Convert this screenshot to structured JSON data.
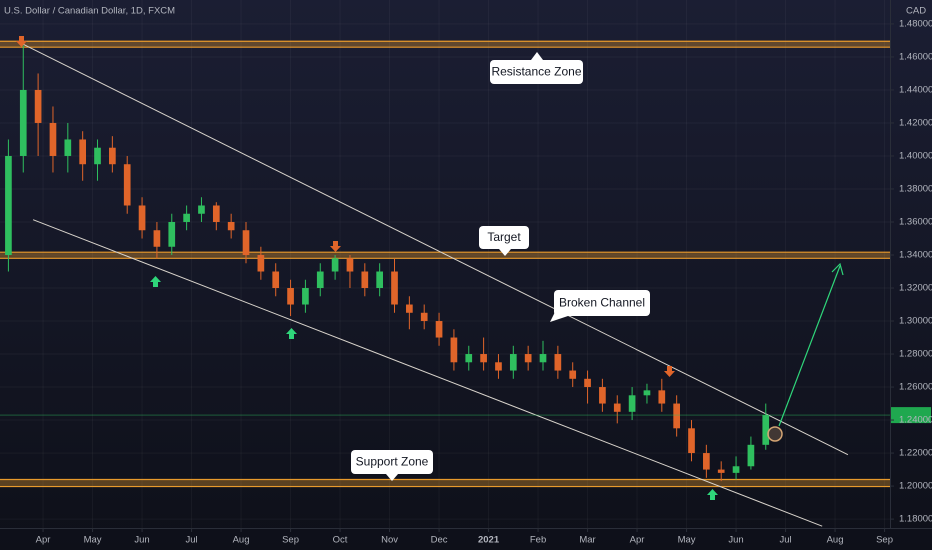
{
  "chart_data": {
    "type": "candlestick",
    "title": "U.S. Dollar / Canadian Dollar, 1D, FXCM",
    "y_axis_label": "CAD",
    "x": [
      0.3,
      0.6,
      0.9,
      1.2,
      1.5,
      1.8,
      2.1,
      2.4,
      2.7,
      3.0,
      3.3,
      3.6,
      3.9,
      4.2,
      4.5,
      4.8,
      5.1,
      5.4,
      5.7,
      6.0,
      6.3,
      6.6,
      6.9,
      7.2,
      7.5,
      7.8,
      8.1,
      8.4,
      8.7,
      9.0,
      9.3,
      9.6,
      9.9,
      10.2,
      10.5,
      10.8,
      11.1,
      11.4,
      11.7,
      12.0,
      12.3,
      12.6,
      12.9,
      13.2,
      13.5,
      13.8,
      14.1,
      14.4,
      14.7,
      15.0,
      15.3,
      15.6
    ],
    "open": [
      1.34,
      1.4,
      1.44,
      1.42,
      1.4,
      1.41,
      1.395,
      1.405,
      1.395,
      1.37,
      1.355,
      1.345,
      1.36,
      1.365,
      1.37,
      1.36,
      1.355,
      1.34,
      1.33,
      1.32,
      1.31,
      1.32,
      1.33,
      1.338,
      1.33,
      1.32,
      1.33,
      1.31,
      1.305,
      1.3,
      1.29,
      1.275,
      1.28,
      1.275,
      1.27,
      1.28,
      1.275,
      1.28,
      1.27,
      1.265,
      1.26,
      1.25,
      1.245,
      1.255,
      1.258,
      1.25,
      1.235,
      1.22,
      1.21,
      1.208,
      1.212,
      1.225
    ],
    "high": [
      1.41,
      1.467,
      1.45,
      1.43,
      1.42,
      1.415,
      1.41,
      1.412,
      1.4,
      1.375,
      1.36,
      1.365,
      1.37,
      1.375,
      1.372,
      1.365,
      1.36,
      1.345,
      1.335,
      1.325,
      1.325,
      1.335,
      1.34,
      1.34,
      1.335,
      1.335,
      1.338,
      1.315,
      1.31,
      1.305,
      1.295,
      1.285,
      1.29,
      1.28,
      1.285,
      1.285,
      1.288,
      1.285,
      1.275,
      1.27,
      1.265,
      1.255,
      1.26,
      1.262,
      1.265,
      1.255,
      1.24,
      1.225,
      1.215,
      1.218,
      1.23,
      1.25
    ],
    "low": [
      1.33,
      1.39,
      1.4,
      1.39,
      1.39,
      1.385,
      1.385,
      1.39,
      1.365,
      1.35,
      1.338,
      1.34,
      1.355,
      1.36,
      1.355,
      1.35,
      1.335,
      1.325,
      1.315,
      1.303,
      1.305,
      1.315,
      1.325,
      1.32,
      1.315,
      1.315,
      1.305,
      1.295,
      1.295,
      1.285,
      1.27,
      1.27,
      1.27,
      1.265,
      1.265,
      1.27,
      1.27,
      1.265,
      1.26,
      1.25,
      1.245,
      1.238,
      1.24,
      1.25,
      1.245,
      1.23,
      1.215,
      1.205,
      1.203,
      1.204,
      1.21,
      1.222
    ],
    "close": [
      1.4,
      1.44,
      1.42,
      1.4,
      1.41,
      1.395,
      1.405,
      1.395,
      1.37,
      1.355,
      1.345,
      1.36,
      1.365,
      1.37,
      1.36,
      1.355,
      1.34,
      1.33,
      1.32,
      1.31,
      1.32,
      1.33,
      1.338,
      1.33,
      1.32,
      1.33,
      1.31,
      1.305,
      1.3,
      1.29,
      1.275,
      1.28,
      1.275,
      1.27,
      1.28,
      1.275,
      1.28,
      1.27,
      1.265,
      1.26,
      1.25,
      1.245,
      1.255,
      1.258,
      1.25,
      1.235,
      1.22,
      1.21,
      1.208,
      1.212,
      1.225,
      1.243
    ],
    "up_color": "#2fbf5f",
    "down_color": "#e0652a",
    "xlim": [
      0.13,
      18.11
    ],
    "ylim": [
      1.1746,
      1.4945
    ],
    "xticks": [
      {
        "value": 1,
        "label": "Apr"
      },
      {
        "value": 2,
        "label": "May"
      },
      {
        "value": 3,
        "label": "Jun"
      },
      {
        "value": 4,
        "label": "Jul"
      },
      {
        "value": 5,
        "label": "Aug"
      },
      {
        "value": 6,
        "label": "Sep"
      },
      {
        "value": 7,
        "label": "Oct"
      },
      {
        "value": 8,
        "label": "Nov"
      },
      {
        "value": 9,
        "label": "Dec"
      },
      {
        "value": 10,
        "label": "2021"
      },
      {
        "value": 11,
        "label": "Feb"
      },
      {
        "value": 12,
        "label": "Mar"
      },
      {
        "value": 13,
        "label": "Apr"
      },
      {
        "value": 14,
        "label": "May"
      },
      {
        "value": 15,
        "label": "Jun"
      },
      {
        "value": 16,
        "label": "Jul"
      },
      {
        "value": 17,
        "label": "Aug"
      },
      {
        "value": 18,
        "label": "Sep"
      }
    ],
    "yticks": [
      {
        "value": 1.18,
        "label": "1.18000"
      },
      {
        "value": 1.2,
        "label": "1.20000"
      },
      {
        "value": 1.22,
        "label": "1.22000"
      },
      {
        "value": 1.24,
        "label": "1.24000"
      },
      {
        "value": 1.26,
        "label": "1.26000"
      },
      {
        "value": 1.28,
        "label": "1.28000"
      },
      {
        "value": 1.3,
        "label": "1.30000"
      },
      {
        "value": 1.32,
        "label": "1.32000"
      },
      {
        "value": 1.34,
        "label": "1.34000"
      },
      {
        "value": 1.36,
        "label": "1.36000"
      },
      {
        "value": 1.38,
        "label": "1.38000"
      },
      {
        "value": 1.4,
        "label": "1.40000"
      },
      {
        "value": 1.42,
        "label": "1.42000"
      },
      {
        "value": 1.44,
        "label": "1.44000"
      },
      {
        "value": 1.46,
        "label": "1.46000"
      },
      {
        "value": 1.48,
        "label": "1.48000"
      }
    ],
    "grid": true,
    "zones": [
      {
        "label": "Resistance Zone",
        "y": [
          1.4659,
          1.4695
        ],
        "color": "#e89a2c"
      },
      {
        "label": "Target",
        "y": [
          1.338,
          1.3417
        ],
        "color": "#e89a2c"
      },
      {
        "label": "Support Zone",
        "y": [
          1.1997,
          1.204
        ],
        "color": "#e89a2c"
      }
    ],
    "trendlines": [
      {
        "label": "Broken Channel",
        "x": [
          0.576,
          17.26
        ],
        "y": [
          1.468,
          1.219
        ],
        "color": "#d9d4cc"
      },
      {
        "x": [
          0.798,
          16.74
        ],
        "y": [
          1.3614,
          1.1757
        ],
        "color": "#d9d4cc"
      }
    ]
  }
}
